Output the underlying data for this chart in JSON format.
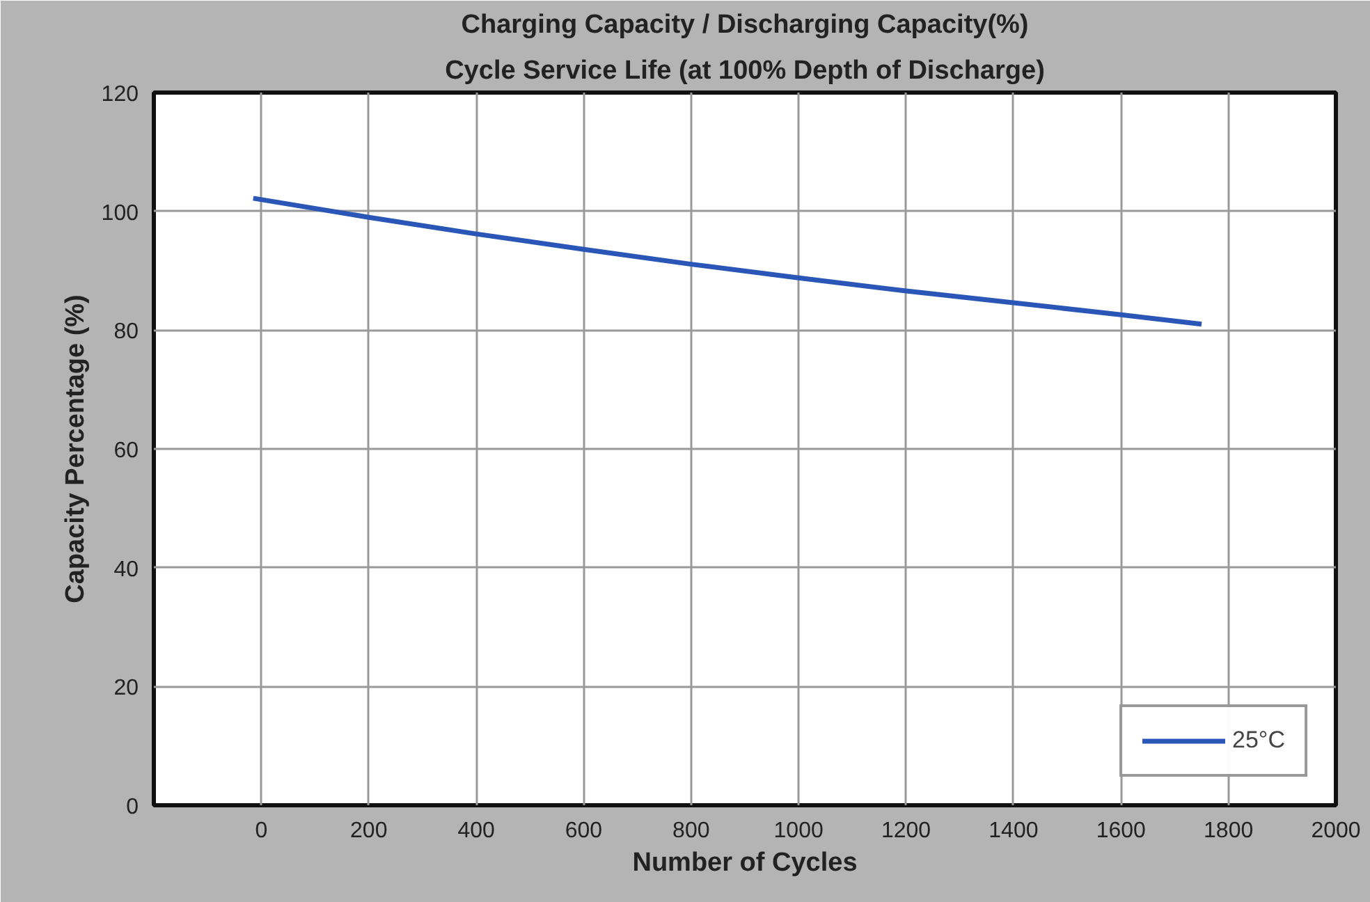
{
  "chart_data": {
    "type": "line",
    "title": "Charging Capacity / Discharging Capacity(%)",
    "subtitle": "Cycle Service Life (at 100% Depth of Discharge)",
    "xlabel": "Number of Cycles",
    "ylabel": "Capacity Percentage (%)",
    "series": [
      {
        "name": "25°C",
        "color": "#2a56b8",
        "x": [
          -15,
          200,
          400,
          600,
          800,
          1000,
          1200,
          1400,
          1600,
          1750
        ],
        "values": [
          102.2,
          99,
          96.2,
          93.6,
          91.1,
          88.8,
          86.6,
          84.6,
          82.6,
          81
        ]
      }
    ],
    "xlim": [
      -200,
      2000
    ],
    "xticks": [
      0,
      200,
      400,
      600,
      800,
      1000,
      1200,
      1400,
      1600,
      1800,
      2000
    ],
    "ylim": [
      0,
      120
    ],
    "yticks": [
      0,
      20,
      40,
      60,
      80,
      100,
      120
    ],
    "grid": true,
    "legend": "bottom right",
    "marker": "none",
    "line_style": "solid"
  }
}
